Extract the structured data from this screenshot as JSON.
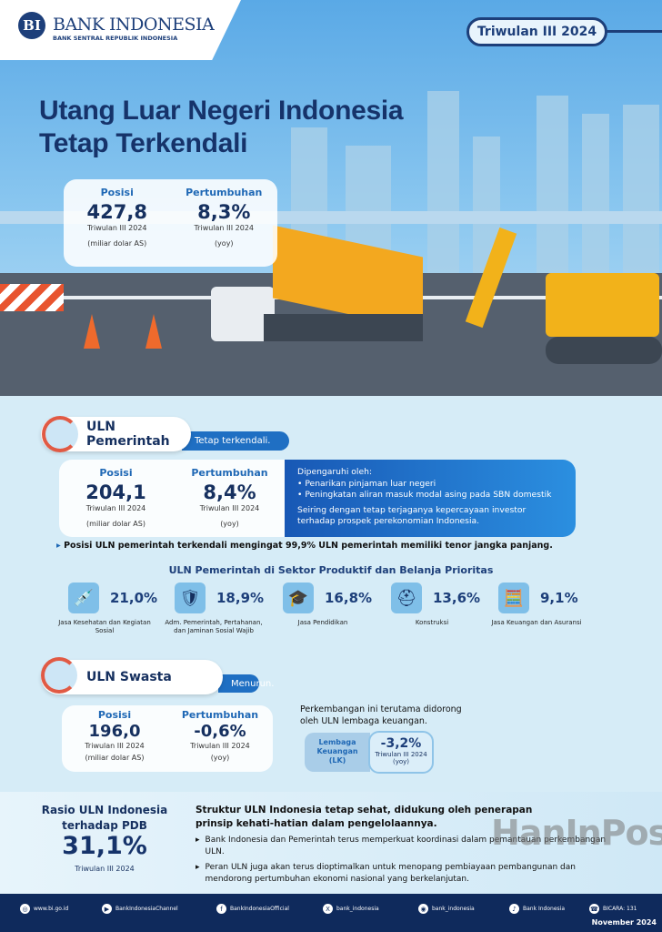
{
  "header": {
    "logo_mark": "BI",
    "logo_name": "BANK INDONESIA",
    "logo_sub": "BANK SENTRAL REPUBLIK INDONESIA",
    "period": "Triwulan III 2024"
  },
  "title": {
    "line1": "Utang Luar Negeri Indonesia",
    "line2": "Tetap Terkendali"
  },
  "total": {
    "posisi_label": "Posisi",
    "posisi_value": "427,8",
    "posisi_period": "Triwulan III 2024",
    "posisi_unit": "(miliar dolar AS)",
    "growth_label": "Pertumbuhan",
    "growth_value": "8,3%",
    "growth_period": "Triwulan III 2024",
    "growth_unit": "(yoy)"
  },
  "government": {
    "title": "ULN Pemerintah",
    "tag": "Tetap terkendali.",
    "posisi_label": "Posisi",
    "posisi_value": "204,1",
    "posisi_period": "Triwulan III 2024",
    "posisi_unit": "(miliar dolar AS)",
    "growth_label": "Pertumbuhan",
    "growth_value": "8,4%",
    "growth_period": "Triwulan III 2024",
    "growth_unit": "(yoy)",
    "info_heading": "Dipengaruhi oleh:",
    "info_items": [
      "Penarikan pinjaman luar negeri",
      "Peningkatan aliran masuk modal asing pada SBN domestik"
    ],
    "info_note": "Seiring dengan tetap terjaganya kepercayaan investor terhadap prospek perekonomian Indonesia.",
    "highlight": "Posisi ULN pemerintah terkendali mengingat 99,9% ULN pemerintah memiliki tenor jangka panjang.",
    "sector_heading": "ULN Pemerintah di Sektor Produktif dan Belanja Prioritas",
    "sectors": [
      {
        "icon": "syringe-icon",
        "value": "21,0%",
        "label": "Jasa Kesehatan dan Kegiatan Sosial"
      },
      {
        "icon": "shield-icon",
        "value": "18,9%",
        "label": "Adm. Pemerintah, Pertahanan, dan Jaminan Sosial Wajib"
      },
      {
        "icon": "graduation-cap-icon",
        "value": "16,8%",
        "label": "Jasa Pendidikan"
      },
      {
        "icon": "hard-hat-icon",
        "value": "13,6%",
        "label": "Konstruksi"
      },
      {
        "icon": "calculator-icon",
        "value": "9,1%",
        "label": "Jasa Keuangan dan Asuransi"
      }
    ]
  },
  "private": {
    "title": "ULN Swasta",
    "tag": "Menurun.",
    "posisi_label": "Posisi",
    "posisi_value": "196,0",
    "posisi_period": "Triwulan III 2024",
    "posisi_unit": "(miliar dolar AS)",
    "growth_label": "Pertumbuhan",
    "growth_value": "-0,6%",
    "growth_period": "Triwulan III 2024",
    "growth_unit": "(yoy)",
    "note": "Perkembangan ini terutama didorong oleh ULN lembaga keuangan.",
    "lk_label": "Lembaga Keuangan (LK)",
    "lk_value": "-3,2%",
    "lk_period": "Triwulan III 2024",
    "lk_unit": "(yoy)"
  },
  "ratio": {
    "title": "Rasio ULN Indonesia terhadap PDB",
    "value": "31,1%",
    "period": "Triwulan III 2024",
    "heading": "Struktur ULN Indonesia tetap sehat, didukung oleh penerapan prinsip kehati-hatian dalam pengelolaannya.",
    "bullets": [
      "Bank Indonesia dan Pemerintah terus memperkuat koordinasi dalam pemantauan perkembangan ULN.",
      "Peran ULN juga akan terus dioptimalkan untuk menopang pembiayaan pembangunan dan mendorong pertumbuhan ekonomi nasional yang berkelanjutan."
    ]
  },
  "watermark": "HanInPost",
  "footer": {
    "links": [
      {
        "icon": "globe-icon",
        "text": "www.bi.go.id"
      },
      {
        "icon": "youtube-icon",
        "text": "BankIndonesiaChannel"
      },
      {
        "icon": "facebook-icon",
        "text": "BankIndonesiaOfficial"
      },
      {
        "icon": "x-icon",
        "text": "bank_indonesia"
      },
      {
        "icon": "instagram-icon",
        "text": "bank_indonesia"
      },
      {
        "icon": "tiktok-icon",
        "text": "Bank Indonesia"
      },
      {
        "icon": "bicara-icon",
        "text": "BICARA: 131"
      }
    ],
    "date": "November 2024"
  }
}
